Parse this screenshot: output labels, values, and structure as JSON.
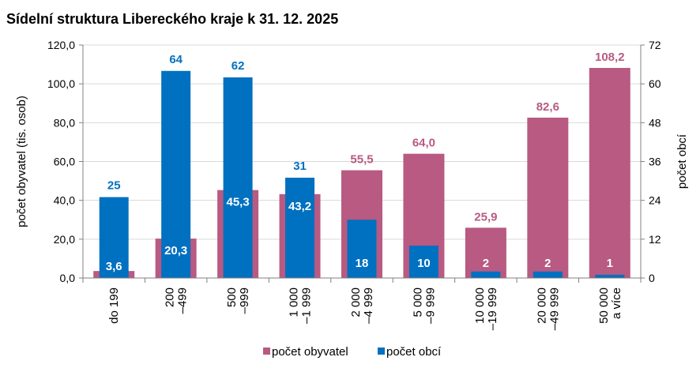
{
  "chart_data": {
    "type": "bar",
    "title": "Sídelní struktura Libereckého kraje k 31. 12. 2025",
    "categories": [
      [
        "do 199"
      ],
      [
        "200",
        "–499"
      ],
      [
        "500",
        "–999"
      ],
      [
        "1 000",
        "–1 999"
      ],
      [
        "2 000",
        "–4 999"
      ],
      [
        "5 000",
        "–9 999"
      ],
      [
        "10 000",
        "–19 999"
      ],
      [
        "20 000",
        "–49 999"
      ],
      [
        "50 000",
        "a více"
      ]
    ],
    "ylabel_left": "počet obyvatel (tis. osob)",
    "ylabel_right": "počet obcí",
    "ylim_left": [
      0,
      120
    ],
    "ylim_right": [
      0,
      72
    ],
    "yticks_left": [
      "0,0",
      "20,0",
      "40,0",
      "60,0",
      "80,0",
      "100,0",
      "120,0"
    ],
    "yticks_right": [
      "0",
      "12",
      "24",
      "36",
      "48",
      "60",
      "72"
    ],
    "series": [
      {
        "name": "počet obyvatel",
        "axis": "left",
        "color": "#b85a82",
        "values": [
          3.6,
          20.3,
          45.3,
          43.2,
          55.5,
          64.0,
          25.9,
          82.6,
          108.2
        ],
        "labels": [
          "3,6",
          "20,3",
          "45,3",
          "43,2",
          "55,5",
          "64,0",
          "25,9",
          "82,6",
          "108,2"
        ]
      },
      {
        "name": "počet obcí",
        "axis": "right",
        "color": "#0070c0",
        "values": [
          25,
          64,
          62,
          31,
          18,
          10,
          2,
          2,
          1
        ],
        "labels": [
          "25",
          "64",
          "62",
          "31",
          "18",
          "10",
          "2",
          "2",
          "1"
        ]
      }
    ],
    "legend_position": "bottom",
    "grid": true
  }
}
